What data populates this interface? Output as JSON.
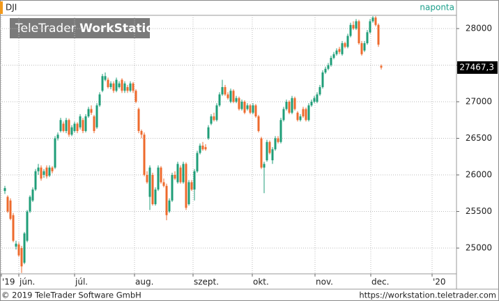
{
  "chart_data": {
    "type": "candlestick",
    "title": "DJI",
    "interval": "naponta",
    "logo": {
      "light": "TeleTrader",
      "bold": "WorkStation"
    },
    "last_label": "27467,3",
    "footer_left": "© 2019 TeleTrader Software GmbH",
    "footer_right": "https://workstation.teletrader.com",
    "up_color": "#1f9e78",
    "down_color": "#ee6a2c",
    "grid": true,
    "ylim": [
      24648,
      28181
    ],
    "yticks": [
      25000,
      25500,
      26000,
      26500,
      27000,
      27500,
      28000
    ],
    "xlim": [
      -1.75,
      162
    ],
    "xticks": [
      {
        "value": -1.25,
        "label": "'19"
      },
      {
        "value": 5,
        "label": "jún."
      },
      {
        "value": 25,
        "label": "júl."
      },
      {
        "value": 46.5,
        "label": "aug."
      },
      {
        "value": 67.5,
        "label": "szept."
      },
      {
        "value": 88.75,
        "label": "okt."
      },
      {
        "value": 111.25,
        "label": "nov."
      },
      {
        "value": 131.25,
        "label": "dec."
      },
      {
        "value": 153.25,
        "label": "'20"
      }
    ],
    "ohlc": [
      [
        25780,
        25850,
        25740,
        25820
      ],
      [
        25700,
        25720,
        25480,
        25500
      ],
      [
        25650,
        25680,
        25380,
        25400
      ],
      [
        25450,
        25480,
        25080,
        25100
      ],
      [
        25020,
        25100,
        24980,
        25060
      ],
      [
        25050,
        25080,
        24880,
        24900
      ],
      [
        25000,
        25030,
        24660,
        24750
      ],
      [
        24800,
        25220,
        24780,
        25200
      ],
      [
        25100,
        25520,
        25080,
        25500
      ],
      [
        25500,
        25720,
        25480,
        25700
      ],
      [
        25650,
        25830,
        25630,
        25800
      ],
      [
        25800,
        26080,
        25780,
        26050
      ],
      [
        26050,
        26150,
        26000,
        26100
      ],
      [
        26100,
        26130,
        25920,
        25950
      ],
      [
        26000,
        26080,
        25960,
        26050
      ],
      [
        26100,
        26130,
        25950,
        25980
      ],
      [
        25990,
        26130,
        25970,
        26100
      ],
      [
        26100,
        26120,
        26020,
        26050
      ],
      [
        26100,
        26530,
        26080,
        26500
      ],
      [
        26500,
        26580,
        26470,
        26550
      ],
      [
        26600,
        26780,
        26580,
        26750
      ],
      [
        26700,
        26730,
        26580,
        26600
      ],
      [
        26600,
        26780,
        26570,
        26750
      ],
      [
        26750,
        26770,
        26520,
        26550
      ],
      [
        26550,
        26680,
        26530,
        26650
      ],
      [
        26600,
        26730,
        26580,
        26700
      ],
      [
        26700,
        26720,
        26570,
        26600
      ],
      [
        26650,
        26830,
        26620,
        26800
      ],
      [
        26750,
        26780,
        26570,
        26600
      ],
      [
        26600,
        26830,
        26580,
        26800
      ],
      [
        26800,
        26930,
        26780,
        26900
      ],
      [
        26900,
        26950,
        26820,
        26850
      ],
      [
        26800,
        26820,
        26570,
        26600
      ],
      [
        26650,
        26980,
        26630,
        26950
      ],
      [
        26950,
        27130,
        26930,
        27100
      ],
      [
        27150,
        27380,
        27130,
        27350
      ],
      [
        27300,
        27400,
        27280,
        27350
      ],
      [
        27300,
        27330,
        27180,
        27200
      ],
      [
        27200,
        27280,
        27170,
        27250
      ],
      [
        27250,
        27280,
        27120,
        27150
      ],
      [
        27150,
        27330,
        27130,
        27300
      ],
      [
        27200,
        27280,
        27180,
        27250
      ],
      [
        27300,
        27320,
        27120,
        27150
      ],
      [
        27150,
        27280,
        27120,
        27250
      ],
      [
        27200,
        27230,
        27120,
        27150
      ],
      [
        27150,
        27280,
        27130,
        27250
      ],
      [
        27250,
        27270,
        27120,
        27150
      ],
      [
        27150,
        27170,
        26980,
        27000
      ],
      [
        26900,
        26920,
        26570,
        26600
      ],
      [
        26600,
        26620,
        26500,
        26550
      ],
      [
        26550,
        26580,
        25980,
        26000
      ],
      [
        26000,
        26050,
        25880,
        25900
      ],
      [
        25700,
        26130,
        25520,
        26100
      ],
      [
        26000,
        26030,
        25580,
        25600
      ],
      [
        25600,
        25830,
        25580,
        25800
      ],
      [
        25800,
        26130,
        25780,
        26100
      ],
      [
        26100,
        26120,
        25880,
        25900
      ],
      [
        25900,
        25950,
        25830,
        25850
      ],
      [
        25850,
        25880,
        25380,
        25450
      ],
      [
        25500,
        25680,
        25480,
        25650
      ],
      [
        25650,
        26030,
        25630,
        26000
      ],
      [
        26000,
        26050,
        25930,
        25950
      ],
      [
        25900,
        26180,
        25880,
        26150
      ],
      [
        26100,
        26130,
        25880,
        25900
      ],
      [
        25900,
        26180,
        25880,
        26150
      ],
      [
        26150,
        26170,
        25520,
        25550
      ],
      [
        25600,
        25930,
        25580,
        25900
      ],
      [
        25900,
        25930,
        25780,
        25800
      ],
      [
        25800,
        26080,
        25650,
        26050
      ],
      [
        26050,
        26330,
        26030,
        26300
      ],
      [
        26300,
        26430,
        26280,
        26400
      ],
      [
        26400,
        26450,
        26330,
        26350
      ],
      [
        26380,
        26420,
        26330,
        26350
      ],
      [
        26500,
        26680,
        26480,
        26650
      ],
      [
        26700,
        26830,
        26680,
        26800
      ],
      [
        26800,
        26850,
        26730,
        26750
      ],
      [
        26750,
        26980,
        26730,
        26950
      ],
      [
        26950,
        27130,
        26930,
        27100
      ],
      [
        27100,
        27300,
        27080,
        27200
      ],
      [
        27200,
        27230,
        27080,
        27100
      ],
      [
        27100,
        27130,
        27030,
        27050
      ],
      [
        27000,
        27180,
        26980,
        27150
      ],
      [
        27150,
        27170,
        26980,
        27000
      ],
      [
        27000,
        27080,
        26980,
        27050
      ],
      [
        27050,
        27070,
        26880,
        26900
      ],
      [
        26900,
        27030,
        26880,
        27000
      ],
      [
        27000,
        27020,
        26830,
        26850
      ],
      [
        26900,
        26980,
        26880,
        26950
      ],
      [
        26950,
        26970,
        26830,
        26850
      ],
      [
        26850,
        26980,
        26830,
        26950
      ],
      [
        26950,
        26970,
        26780,
        26800
      ],
      [
        26800,
        26820,
        26580,
        26600
      ],
      [
        26500,
        26520,
        26080,
        26100
      ],
      [
        26100,
        26180,
        25750,
        26150
      ],
      [
        26200,
        26480,
        26180,
        26450
      ],
      [
        26450,
        26470,
        26280,
        26300
      ],
      [
        26200,
        26380,
        26150,
        26350
      ],
      [
        26350,
        26530,
        26330,
        26500
      ],
      [
        26500,
        26530,
        26430,
        26450
      ],
      [
        26450,
        26780,
        26430,
        26750
      ],
      [
        26750,
        26930,
        26730,
        26900
      ],
      [
        26900,
        27030,
        26880,
        27000
      ],
      [
        27000,
        27020,
        26830,
        26850
      ],
      [
        26850,
        27080,
        26830,
        27050
      ],
      [
        27050,
        27070,
        26880,
        26900
      ],
      [
        26850,
        26870,
        26730,
        26750
      ],
      [
        26750,
        26830,
        26730,
        26800
      ],
      [
        26900,
        26930,
        26780,
        26800
      ],
      [
        26900,
        26920,
        26730,
        26750
      ],
      [
        26750,
        26980,
        26730,
        26950
      ],
      [
        26950,
        27030,
        26930,
        27000
      ],
      [
        27000,
        27080,
        26980,
        27050
      ],
      [
        27000,
        27130,
        26980,
        27100
      ],
      [
        27100,
        27230,
        27080,
        27200
      ],
      [
        27200,
        27430,
        27180,
        27400
      ],
      [
        27400,
        27480,
        27380,
        27450
      ],
      [
        27450,
        27530,
        27430,
        27500
      ],
      [
        27500,
        27630,
        27480,
        27600
      ],
      [
        27600,
        27680,
        27580,
        27650
      ],
      [
        27650,
        27730,
        27630,
        27700
      ],
      [
        27720,
        27750,
        27650,
        27680
      ],
      [
        27650,
        27830,
        27630,
        27800
      ],
      [
        27800,
        27820,
        27730,
        27750
      ],
      [
        27750,
        27930,
        27730,
        27900
      ],
      [
        27900,
        28080,
        27880,
        28050
      ],
      [
        28050,
        28100,
        27980,
        28000
      ],
      [
        28000,
        28130,
        27980,
        28100
      ],
      [
        28100,
        28120,
        27780,
        27800
      ],
      [
        27800,
        27830,
        27630,
        27650
      ],
      [
        27700,
        27830,
        27680,
        27800
      ],
      [
        27800,
        27980,
        27780,
        27950
      ],
      [
        27950,
        28130,
        27930,
        28100
      ],
      [
        28100,
        28170,
        28080,
        28150
      ],
      [
        28150,
        28170,
        28030,
        28050
      ],
      [
        28050,
        28070,
        27750,
        27780
      ],
      [
        27490,
        27510,
        27440,
        27467.3
      ]
    ]
  }
}
